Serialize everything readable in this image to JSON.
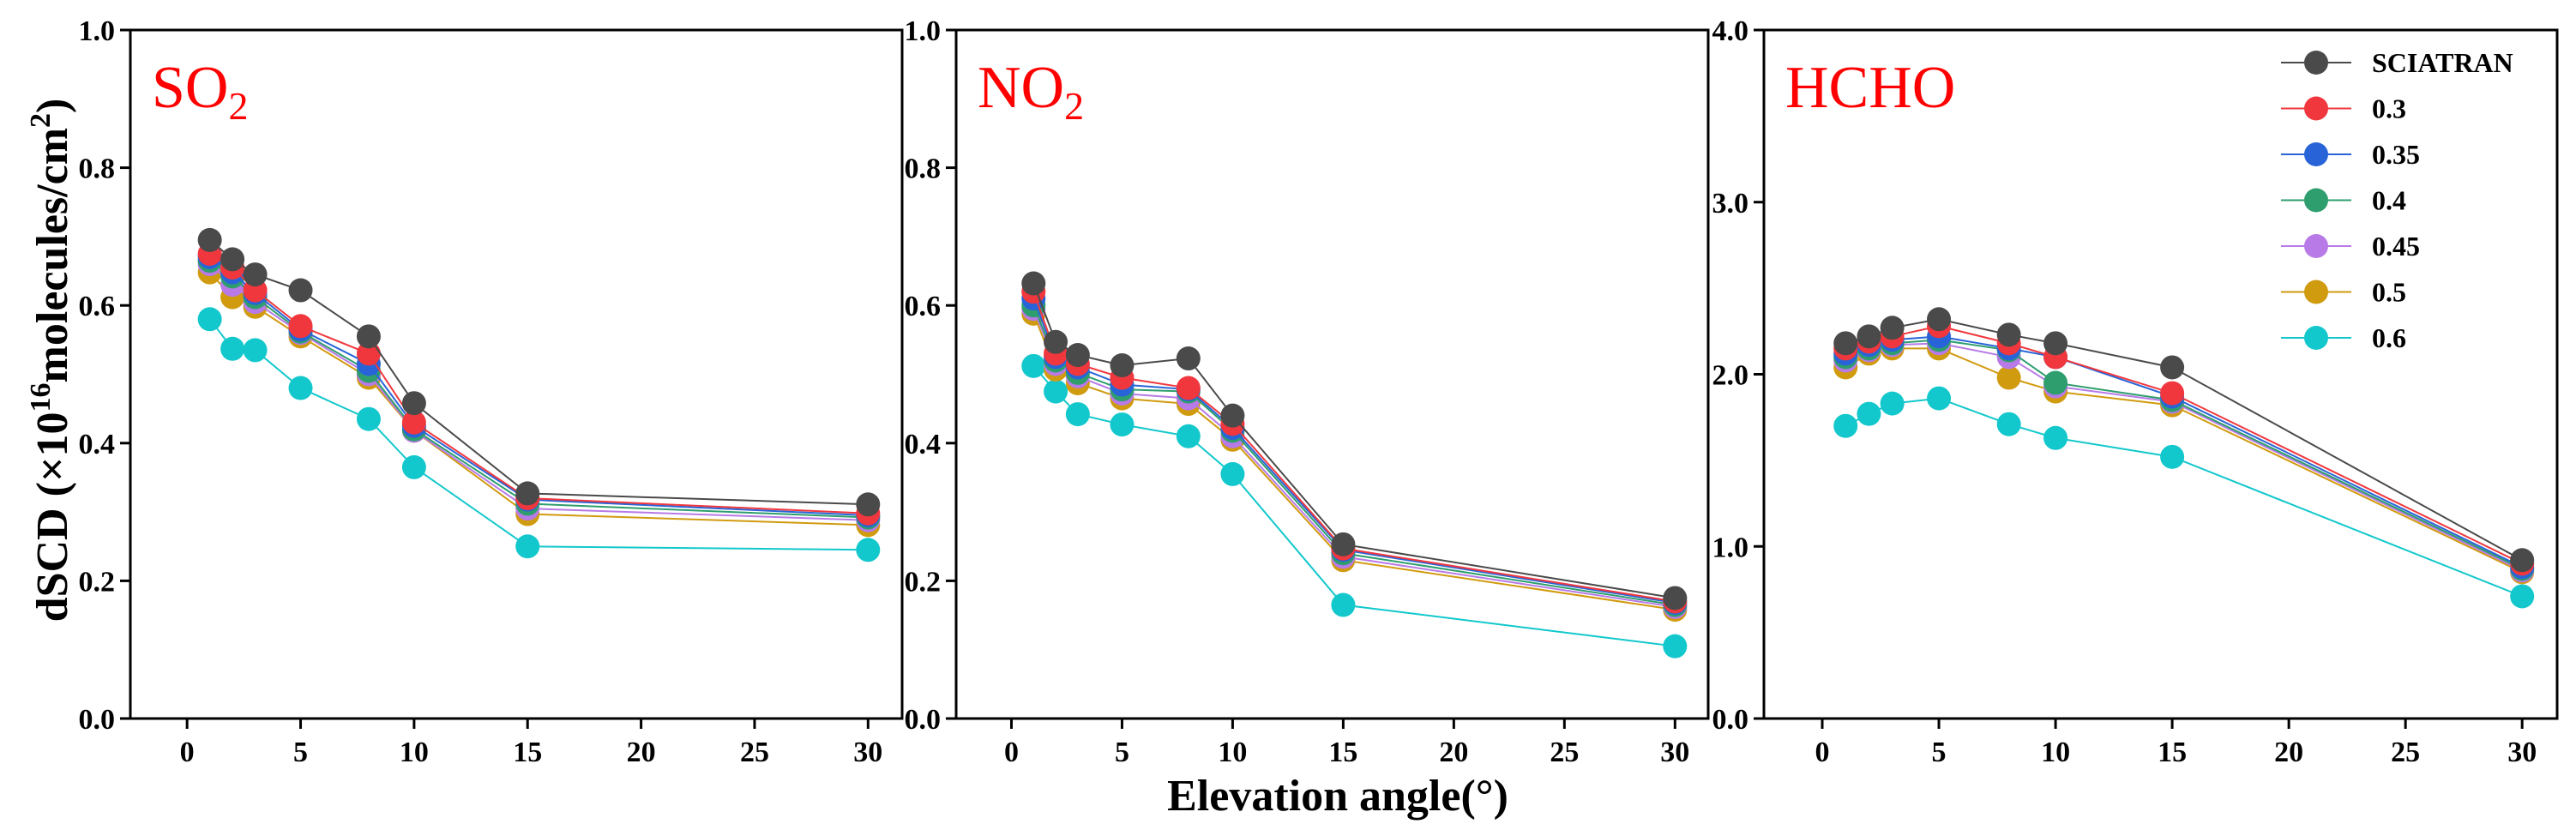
{
  "chart_data": {
    "type": "line",
    "ylabel": "dSCD (×10^16molecules/cm^2)",
    "ylabel_parts": {
      "prefix": "dSCD (×10",
      "exp": "16",
      "mid": "molecules/cm",
      "exp2": "2",
      "suffix": ")"
    },
    "xlabel": "Elevation angle(°)",
    "x": [
      1,
      2,
      3,
      5,
      8,
      10,
      15,
      30
    ],
    "xticks": [
      0,
      5,
      10,
      15,
      20,
      25,
      30
    ],
    "xlim": [
      -2.5,
      31.5
    ],
    "legend": [
      {
        "name": "SCIATRAN",
        "color": "#4a4a4a"
      },
      {
        "name": "0.3",
        "color": "#f0373d"
      },
      {
        "name": "0.35",
        "color": "#2864d8"
      },
      {
        "name": "0.4",
        "color": "#2e9e6e"
      },
      {
        "name": "0.45",
        "color": "#b77ae6"
      },
      {
        "name": "0.5",
        "color": "#d19b10"
      },
      {
        "name": "0.6",
        "color": "#12c8cc"
      }
    ],
    "panels": [
      {
        "title": "SO",
        "title_sub": "2",
        "ylim": [
          0,
          1.0
        ],
        "yticks": [
          "0.0",
          "0.2",
          "0.4",
          "0.6",
          "0.8",
          "1.0"
        ],
        "series": [
          {
            "name": "SCIATRAN",
            "values": [
              0.695,
              0.667,
              0.645,
              0.622,
              0.555,
              0.458,
              0.327,
              0.311
            ]
          },
          {
            "name": "0.3",
            "values": [
              0.675,
              0.655,
              0.622,
              0.57,
              0.53,
              0.43,
              0.32,
              0.298
            ]
          },
          {
            "name": "0.35",
            "values": [
              0.67,
              0.648,
              0.618,
              0.565,
              0.515,
              0.425,
              0.318,
              0.295
            ]
          },
          {
            "name": "0.4",
            "values": [
              0.665,
              0.642,
              0.612,
              0.562,
              0.505,
              0.42,
              0.312,
              0.292
            ]
          },
          {
            "name": "0.45",
            "values": [
              0.66,
              0.63,
              0.605,
              0.56,
              0.5,
              0.418,
              0.305,
              0.288
            ]
          },
          {
            "name": "0.5",
            "values": [
              0.648,
              0.612,
              0.598,
              0.555,
              0.495,
              0.418,
              0.297,
              0.281
            ]
          },
          {
            "name": "0.6",
            "values": [
              0.58,
              0.537,
              0.535,
              0.48,
              0.435,
              0.365,
              0.25,
              0.245
            ]
          }
        ]
      },
      {
        "title": "NO",
        "title_sub": "2",
        "ylim": [
          0,
          1.0
        ],
        "yticks": [
          "0.0",
          "0.2",
          "0.4",
          "0.6",
          "0.8",
          "1.0"
        ],
        "series": [
          {
            "name": "SCIATRAN",
            "values": [
              0.632,
              0.547,
              0.528,
              0.513,
              0.523,
              0.44,
              0.253,
              0.175
            ]
          },
          {
            "name": "0.3",
            "values": [
              0.62,
              0.53,
              0.515,
              0.495,
              0.48,
              0.428,
              0.247,
              0.17
            ]
          },
          {
            "name": "0.35",
            "values": [
              0.61,
              0.525,
              0.51,
              0.485,
              0.478,
              0.422,
              0.245,
              0.168
            ]
          },
          {
            "name": "0.4",
            "values": [
              0.6,
              0.52,
              0.502,
              0.478,
              0.475,
              0.418,
              0.24,
              0.165
            ]
          },
          {
            "name": "0.45",
            "values": [
              0.595,
              0.515,
              0.497,
              0.472,
              0.465,
              0.41,
              0.235,
              0.162
            ]
          },
          {
            "name": "0.5",
            "values": [
              0.588,
              0.507,
              0.487,
              0.465,
              0.457,
              0.405,
              0.23,
              0.158
            ]
          },
          {
            "name": "0.6",
            "values": [
              0.512,
              0.475,
              0.442,
              0.427,
              0.41,
              0.355,
              0.165,
              0.105
            ]
          }
        ]
      },
      {
        "title": "HCHO",
        "title_sub": "",
        "ylim": [
          0,
          4.0
        ],
        "yticks": [
          "0.0",
          "1.0",
          "2.0",
          "3.0",
          "4.0"
        ],
        "series": [
          {
            "name": "SCIATRAN",
            "values": [
              2.18,
              2.22,
              2.27,
              2.32,
              2.23,
              2.18,
              2.04,
              0.92
            ]
          },
          {
            "name": "0.3",
            "values": [
              2.15,
              2.19,
              2.22,
              2.28,
              2.18,
              2.1,
              1.89,
              0.9
            ]
          },
          {
            "name": "0.35",
            "values": [
              2.12,
              2.17,
              2.2,
              2.22,
              2.15,
              2.1,
              1.87,
              0.88
            ]
          },
          {
            "name": "0.4",
            "values": [
              2.1,
              2.15,
              2.18,
              2.2,
              2.14,
              1.95,
              1.85,
              0.87
            ]
          },
          {
            "name": "0.45",
            "values": [
              2.08,
              2.14,
              2.17,
              2.18,
              2.1,
              1.93,
              1.84,
              0.86
            ]
          },
          {
            "name": "0.5",
            "values": [
              2.04,
              2.12,
              2.15,
              2.15,
              1.98,
              1.9,
              1.82,
              0.85
            ]
          },
          {
            "name": "0.6",
            "values": [
              1.7,
              1.77,
              1.83,
              1.86,
              1.71,
              1.63,
              1.52,
              0.71
            ]
          }
        ]
      }
    ]
  }
}
